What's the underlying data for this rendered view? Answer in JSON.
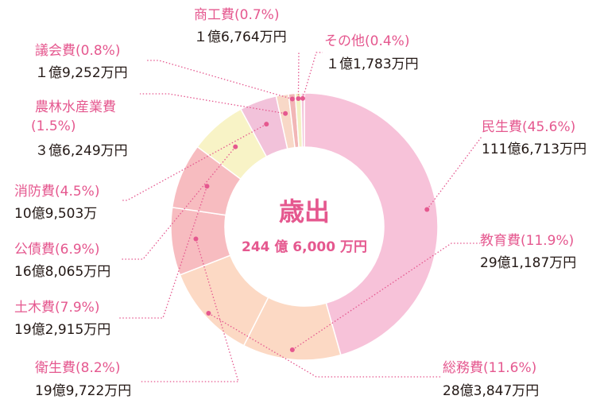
{
  "chart_data": {
    "type": "pie",
    "donut": true,
    "title": "歳出",
    "total": "244 億 6,000 万円",
    "categories": [
      "民生費",
      "教育費",
      "総務費",
      "衛生費",
      "土木費",
      "公債費",
      "消防費",
      "農林水産業費",
      "議会費",
      "商工費",
      "その他"
    ],
    "values": [
      45.6,
      11.9,
      11.6,
      8.2,
      7.9,
      6.9,
      4.5,
      1.5,
      0.8,
      0.7,
      0.4
    ],
    "colors": [
      "#f7c2d9",
      "#fcd9c4",
      "#fcd9c4",
      "#f7bcc0",
      "#f7bcc0",
      "#f8f3c6",
      "#f2c2da",
      "#f8d8c7",
      "#f2b6b6",
      "#f3f0c4",
      "#f4c5da"
    ],
    "slices": [
      {
        "name": "民生費",
        "pct_label": "(45.6%)",
        "amount": "111億6,713万円"
      },
      {
        "name": "教育費",
        "pct_label": "(11.9%)",
        "amount": "29億1,187万円"
      },
      {
        "name": "総務費",
        "pct_label": "(11.6%)",
        "amount": "28億3,847万円"
      },
      {
        "name": "衛生費",
        "pct_label": "(8.2%)",
        "amount": "19億9,722万円"
      },
      {
        "name": "土木費",
        "pct_label": "(7.9%)",
        "amount": "19億2,915万円"
      },
      {
        "name": "公債費",
        "pct_label": "(6.9%)",
        "amount": "16億8,065万円"
      },
      {
        "name": "消防費",
        "pct_label": "(4.5%)",
        "amount": "10億9,503万"
      },
      {
        "name": "農林水産業費",
        "pct_label": "(1.5%)",
        "amount": "３億6,249万円"
      },
      {
        "name": "議会費",
        "pct_label": "(0.8%)",
        "amount": "１億9,252万円"
      },
      {
        "name": "商工費",
        "pct_label": "(0.7%)",
        "amount": "１億6,764万円"
      },
      {
        "name": "その他",
        "pct_label": "(0.4%)",
        "amount": "１億1,783万円"
      }
    ]
  }
}
